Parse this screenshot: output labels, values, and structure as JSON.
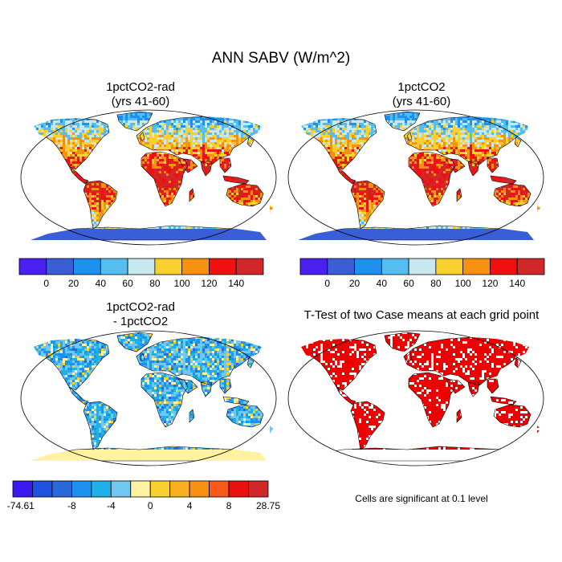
{
  "figure": {
    "title": "ANN SABV (W/m^2)"
  },
  "panels": {
    "case1": {
      "title_line1": "1pctCO2-rad",
      "title_line2": "(yrs 41-60)"
    },
    "case2": {
      "title_line1": "1pctCO2",
      "title_line2": "(yrs 41-60)"
    },
    "diff": {
      "title_line1": "1pctCO2-rad",
      "title_line2": "- 1pctCO2"
    },
    "ttest": {
      "title": "T-Test of two Case means at each grid point",
      "note": "Cells are significant at 0.1 level"
    }
  },
  "colorbars": {
    "absolute": {
      "colors": [
        "#4a20f0",
        "#3a5ed8",
        "#1e90f0",
        "#56bdf0",
        "#c8e8f0",
        "#f8d030",
        "#f89010",
        "#f01010",
        "#d02828"
      ],
      "labels": [
        "0",
        "20",
        "40",
        "60",
        "80",
        "100",
        "120",
        "140"
      ]
    },
    "difference": {
      "colors": [
        "#3a18f0",
        "#2050e0",
        "#2868d8",
        "#1e90f0",
        "#20b0e8",
        "#70c8f0",
        "#fff2a0",
        "#f8d030",
        "#f8b020",
        "#f89010",
        "#f85818",
        "#e81010",
        "#d02828"
      ],
      "labels": [
        "-74.61",
        "-8",
        "-4",
        "0",
        "4",
        "8",
        "28.75"
      ]
    }
  },
  "colors": {
    "ttest_significant": "#ee0000",
    "ocean": "#ffffff",
    "coast": "#000000"
  }
}
